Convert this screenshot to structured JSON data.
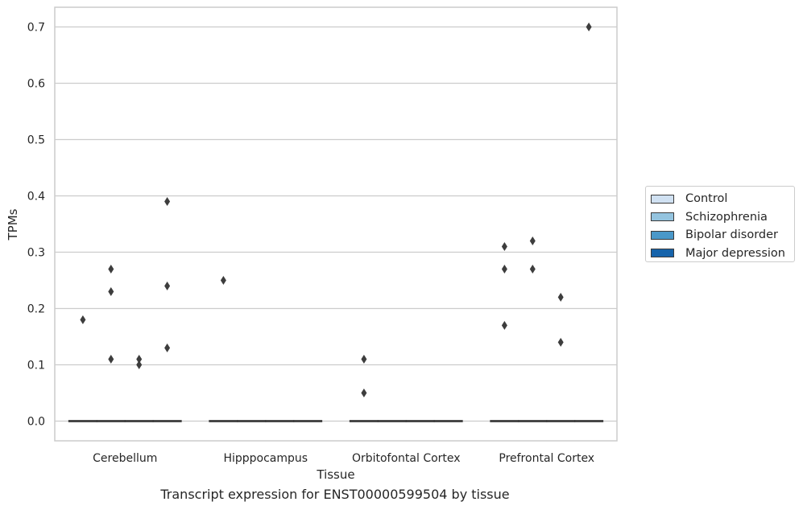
{
  "chart_data": {
    "type": "boxplot",
    "xlabel": "Tissue",
    "ylabel": "TPMs",
    "caption": "Transcript expression for ENST00000599504 by tissue",
    "categories": [
      "Cerebellum",
      "Hipppocampus",
      "Orbitofontal Cortex",
      "Prefrontal Cortex"
    ],
    "groups": [
      "Control",
      "Schizophrenia",
      "Bipolar disorder",
      "Major depression"
    ],
    "group_colors": [
      "#d0e1f2",
      "#94c4df",
      "#4a98c9",
      "#1764ab"
    ],
    "ylim": [
      -0.035,
      0.735
    ],
    "yticks": [
      0.0,
      0.1,
      0.2,
      0.3,
      0.4,
      0.5,
      0.6,
      0.7
    ],
    "ytick_labels": [
      "0.0",
      "0.1",
      "0.2",
      "0.3",
      "0.4",
      "0.5",
      "0.6",
      "0.7"
    ],
    "grid": true,
    "legend_position": "right",
    "boxes": [
      {
        "category": "Cerebellum",
        "group": "Control",
        "median": 0.0
      },
      {
        "category": "Cerebellum",
        "group": "Schizophrenia",
        "median": 0.0
      },
      {
        "category": "Cerebellum",
        "group": "Bipolar disorder",
        "median": 0.0
      },
      {
        "category": "Cerebellum",
        "group": "Major depression",
        "median": 0.0
      },
      {
        "category": "Hipppocampus",
        "group": "Control",
        "median": 0.0
      },
      {
        "category": "Hipppocampus",
        "group": "Schizophrenia",
        "median": 0.0
      },
      {
        "category": "Hipppocampus",
        "group": "Bipolar disorder",
        "median": 0.0
      },
      {
        "category": "Hipppocampus",
        "group": "Major depression",
        "median": 0.0
      },
      {
        "category": "Orbitofontal Cortex",
        "group": "Control",
        "median": 0.0
      },
      {
        "category": "Orbitofontal Cortex",
        "group": "Schizophrenia",
        "median": 0.0
      },
      {
        "category": "Orbitofontal Cortex",
        "group": "Bipolar disorder",
        "median": 0.0
      },
      {
        "category": "Orbitofontal Cortex",
        "group": "Major depression",
        "median": 0.0
      },
      {
        "category": "Prefrontal Cortex",
        "group": "Control",
        "median": 0.0
      },
      {
        "category": "Prefrontal Cortex",
        "group": "Schizophrenia",
        "median": 0.0
      },
      {
        "category": "Prefrontal Cortex",
        "group": "Bipolar disorder",
        "median": 0.0
      },
      {
        "category": "Prefrontal Cortex",
        "group": "Major depression",
        "median": 0.0
      }
    ],
    "outliers": [
      {
        "category": "Cerebellum",
        "group": "Control",
        "values": [
          0.18
        ]
      },
      {
        "category": "Cerebellum",
        "group": "Schizophrenia",
        "values": [
          0.27,
          0.23,
          0.11
        ]
      },
      {
        "category": "Cerebellum",
        "group": "Bipolar disorder",
        "values": [
          0.11,
          0.1
        ]
      },
      {
        "category": "Cerebellum",
        "group": "Major depression",
        "values": [
          0.39,
          0.24,
          0.13
        ]
      },
      {
        "category": "Hipppocampus",
        "group": "Control",
        "values": [
          0.25
        ]
      },
      {
        "category": "Orbitofontal Cortex",
        "group": "Control",
        "values": [
          0.11,
          0.05
        ]
      },
      {
        "category": "Prefrontal Cortex",
        "group": "Control",
        "values": [
          0.31,
          0.27,
          0.17
        ]
      },
      {
        "category": "Prefrontal Cortex",
        "group": "Schizophrenia",
        "values": [
          0.32,
          0.27
        ]
      },
      {
        "category": "Prefrontal Cortex",
        "group": "Bipolar disorder",
        "values": [
          0.22,
          0.14
        ]
      },
      {
        "category": "Prefrontal Cortex",
        "group": "Major depression",
        "values": [
          0.7
        ]
      }
    ]
  }
}
